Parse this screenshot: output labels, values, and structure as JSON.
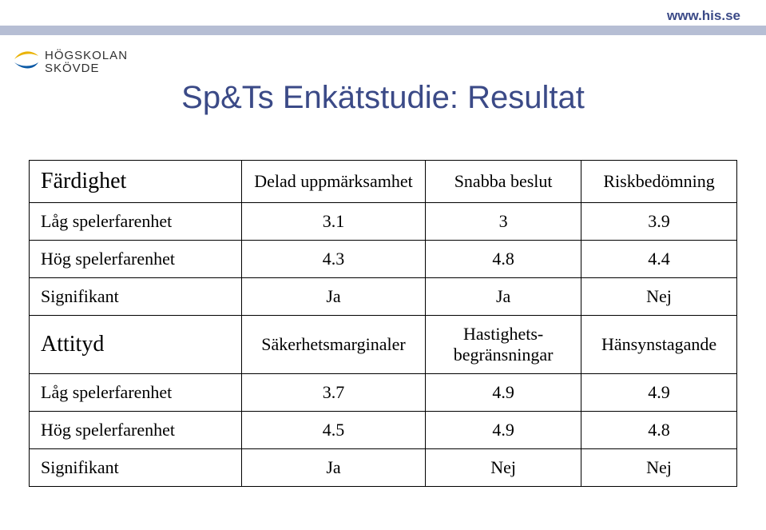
{
  "header": {
    "url": "www.his.se",
    "url_color": "#3b4a87",
    "band_color": "#b6bed4",
    "logo_line1": "HÖGSKOLAN",
    "logo_line2": "SKÖVDE",
    "logo_text_color": "#2f2f2f",
    "logo_swoosh_top": "#eab308",
    "logo_swoosh_bottom": "#0b5aa6"
  },
  "title": {
    "text": "Sp&Ts Enkätstudie: Resultat",
    "color": "#3b4a87",
    "fontsize": 40
  },
  "table": {
    "section1": {
      "head": "Färdighet",
      "col1": "Delad uppmärksamhet",
      "col2": "Snabba beslut",
      "col3": "Riskbedömning",
      "rows": [
        {
          "label": "Låg spelerfarenhet",
          "v1": "3.1",
          "v2": "3",
          "v3": "3.9"
        },
        {
          "label": "Hög spelerfarenhet",
          "v1": "4.3",
          "v2": "4.8",
          "v3": "4.4"
        },
        {
          "label": "Signifikant",
          "v1": "Ja",
          "v2": "Ja",
          "v3": "Nej"
        }
      ]
    },
    "section2": {
      "head": "Attityd",
      "col1": "Säkerhetsmarginaler",
      "col2": "Hastighets-begränsningar",
      "col3": "Hänsynstagande",
      "rows": [
        {
          "label": "Låg spelerfarenhet",
          "v1": "3.7",
          "v2": "4.9",
          "v3": "4.9"
        },
        {
          "label": "Hög spelerfarenhet",
          "v1": "4.5",
          "v2": "4.9",
          "v3": "4.8"
        },
        {
          "label": "Signifikant",
          "v1": "Ja",
          "v2": "Nej",
          "v3": "Nej"
        }
      ]
    },
    "border_color": "#000000",
    "cell_fontsize": 22,
    "head_fontsize": 28
  }
}
